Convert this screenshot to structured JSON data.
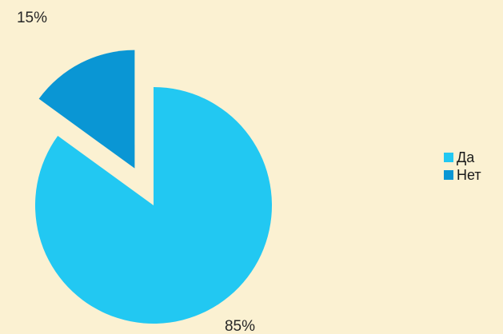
{
  "chart_data": {
    "type": "pie",
    "title": "",
    "slices": [
      {
        "label": "Да",
        "value": 85,
        "data_label": "85%",
        "color": "#22c8f2",
        "exploded": false
      },
      {
        "label": "Нет",
        "value": 15,
        "data_label": "15%",
        "color": "#0a96d4",
        "exploded": true
      }
    ],
    "start_angle_deg": 0,
    "direction": "clockwise",
    "legend": {
      "position": "right",
      "items": [
        {
          "label": "Да",
          "color": "#22c8f2"
        },
        {
          "label": "Нет",
          "color": "#0a96d4"
        }
      ]
    }
  }
}
